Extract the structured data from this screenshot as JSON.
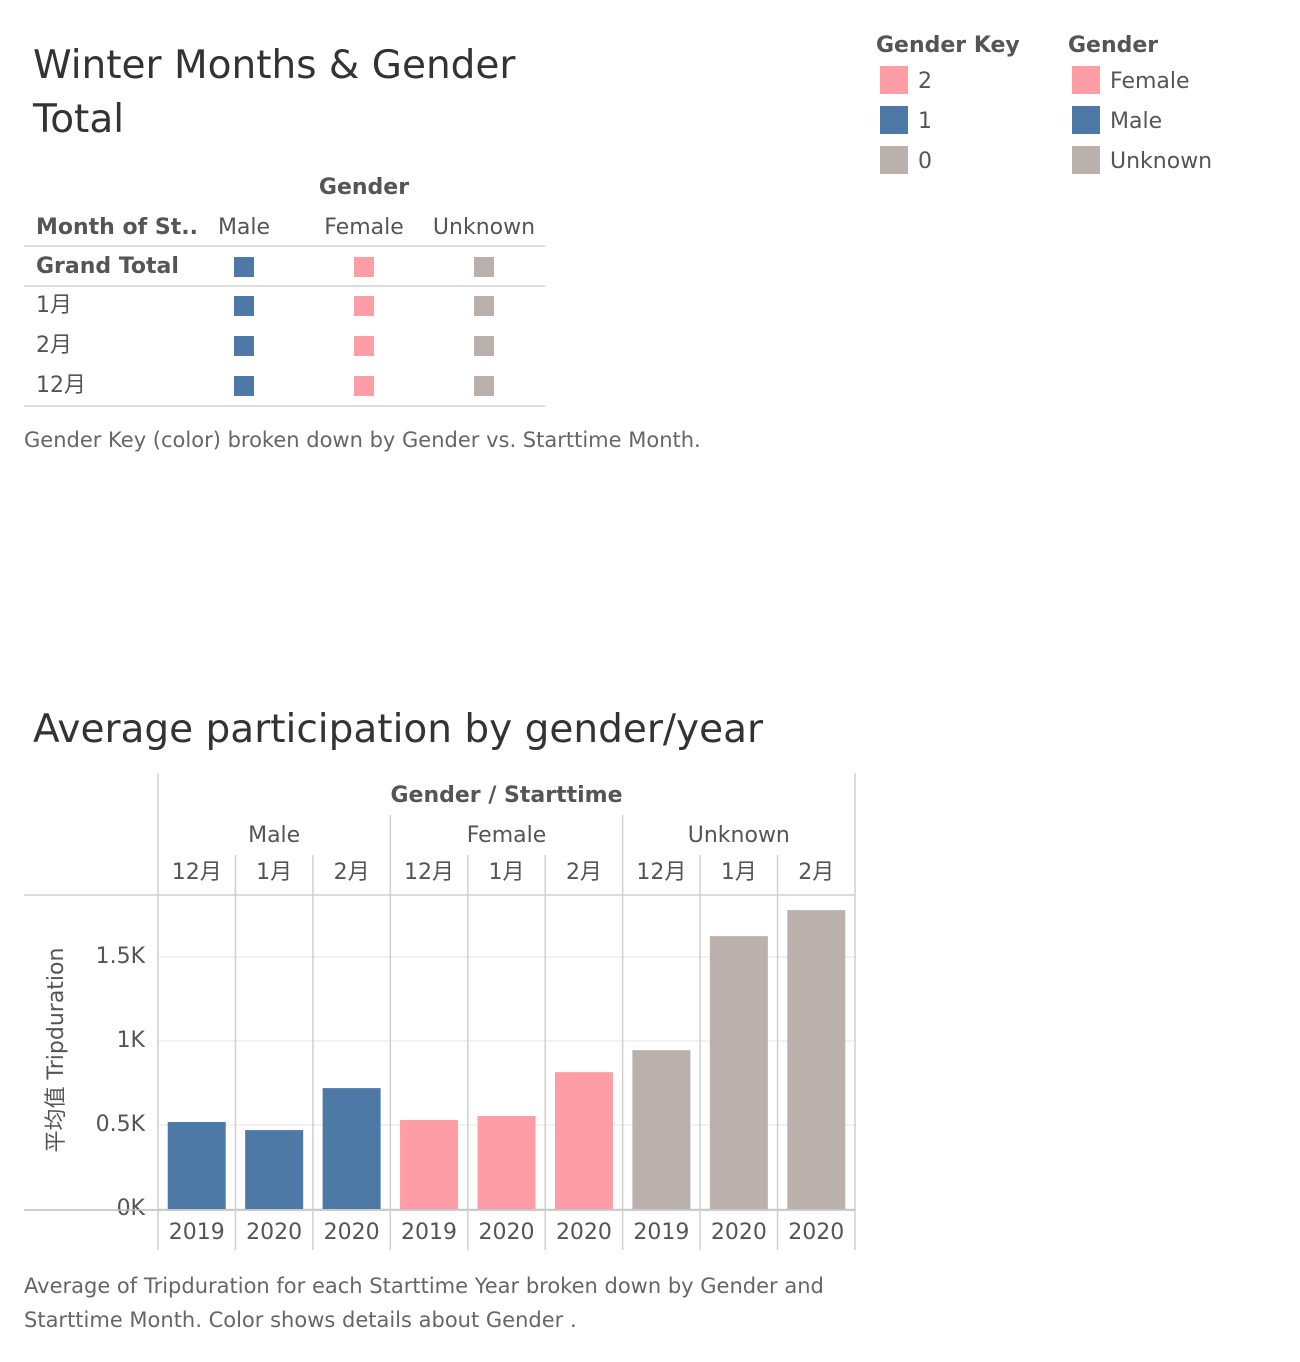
{
  "top": {
    "title": "Winter Months & Gender Total",
    "table": {
      "column_header": "Gender",
      "row_header": "Month of St..",
      "columns": [
        {
          "name": "Male",
          "color": "#4e79a7"
        },
        {
          "name": "Female",
          "color": "#ff9da7"
        },
        {
          "name": "Unknown",
          "color": "#bab0ac"
        }
      ],
      "rows": [
        "Grand Total",
        "1月",
        "2月",
        "12月"
      ]
    },
    "caption": "Gender Key (color) broken down by Gender  vs. Starttime Month."
  },
  "legends": [
    {
      "title": "Gender Key",
      "items": [
        {
          "label": "2",
          "color": "#ff9da7"
        },
        {
          "label": "1",
          "color": "#4e79a7"
        },
        {
          "label": "0",
          "color": "#bab0ac"
        }
      ]
    },
    {
      "title": "Gender",
      "items": [
        {
          "label": "Female",
          "color": "#ff9da7"
        },
        {
          "label": "Male",
          "color": "#4e79a7"
        },
        {
          "label": "Unknown",
          "color": "#bab0ac"
        }
      ]
    }
  ],
  "chart_data": {
    "type": "bar",
    "title": "Average participation by gender/year",
    "header": "Gender  / Starttime",
    "y_label": "平均值 Tripduration",
    "series": [
      {
        "name": "Male",
        "color": "#4e79a7",
        "categories": [
          "12月",
          "1月",
          "2月"
        ],
        "years": [
          "2019",
          "2020",
          "2020"
        ],
        "values": [
          518,
          470,
          720
        ]
      },
      {
        "name": "Female",
        "color": "#ff9da7",
        "categories": [
          "12月",
          "1月",
          "2月"
        ],
        "years": [
          "2019",
          "2020",
          "2020"
        ],
        "values": [
          530,
          554,
          815
        ]
      },
      {
        "name": "Unknown",
        "color": "#bab0ac",
        "categories": [
          "12月",
          "1月",
          "2月"
        ],
        "years": [
          "2019",
          "2020",
          "2020"
        ],
        "values": [
          946,
          1625,
          1780
        ]
      }
    ],
    "ylim": [
      0,
      1870
    ],
    "yticks": [
      {
        "value": 0,
        "label": "0K"
      },
      {
        "value": 500,
        "label": "0.5K"
      },
      {
        "value": 1000,
        "label": "1K"
      },
      {
        "value": 1500,
        "label": "1.5K"
      }
    ],
    "grid": true,
    "caption": "Average of Tripduration for each Starttime Year broken down by Gender and Starttime Month.  Color shows details about Gender ."
  }
}
